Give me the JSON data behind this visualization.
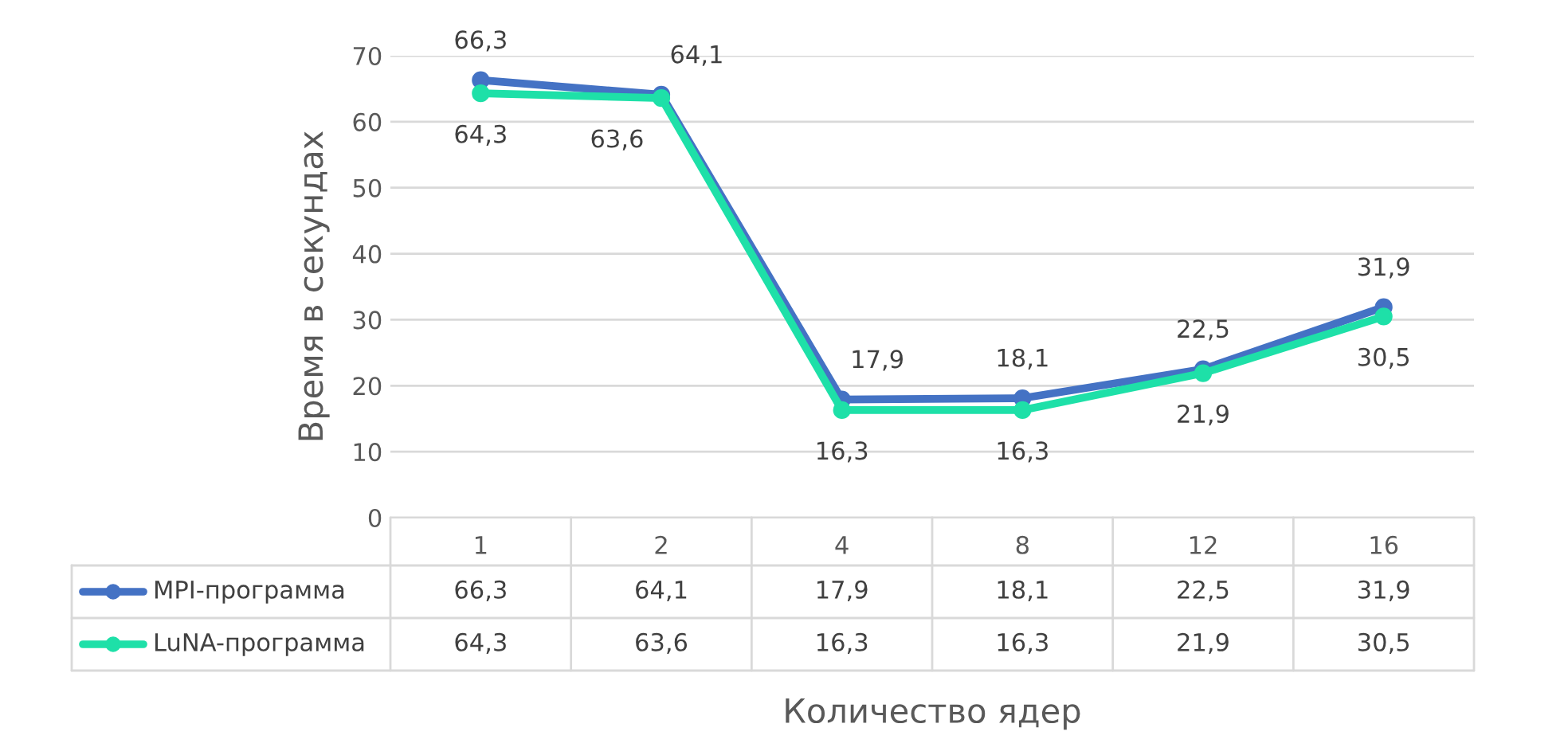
{
  "chart_data": {
    "type": "line",
    "xlabel": "Количество ядер",
    "ylabel": "Время в секундах",
    "categories": [
      "1",
      "2",
      "4",
      "8",
      "12",
      "16"
    ],
    "series": [
      {
        "name": "MPI-программа",
        "color": "#4472c4",
        "values": [
          66.3,
          64.1,
          17.9,
          18.1,
          22.5,
          31.9
        ],
        "value_labels": [
          "66,3",
          "64,1",
          "17,9",
          "18,1",
          "22,5",
          "31,9"
        ]
      },
      {
        "name": "LuNA-программа",
        "color": "#1ee0a8",
        "values": [
          64.3,
          63.6,
          16.3,
          16.3,
          21.9,
          30.5
        ],
        "value_labels": [
          "64,3",
          "63,6",
          "16,3",
          "16,3",
          "21,9",
          "30,5"
        ]
      }
    ],
    "ylim": [
      0,
      70
    ],
    "yticks": [
      0,
      10,
      20,
      30,
      40,
      50,
      60,
      70
    ],
    "grid": "y",
    "legend": "bottom",
    "marker": "circle",
    "line_style": "solid"
  }
}
